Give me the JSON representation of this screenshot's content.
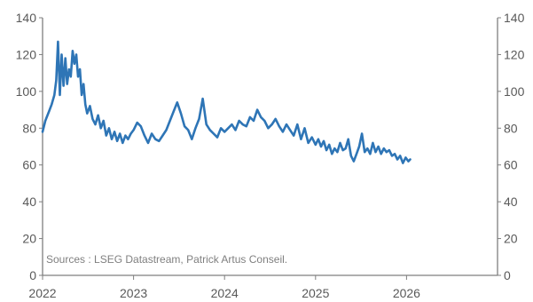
{
  "chart_data": {
    "type": "line",
    "title": "",
    "xlabel": "",
    "ylabel": "",
    "ylim": [
      0,
      140
    ],
    "yticks": [
      0,
      20,
      40,
      60,
      80,
      100,
      120,
      140
    ],
    "xlim": [
      2022,
      2027
    ],
    "xticks": [
      2022,
      2023,
      2024,
      2025,
      2026
    ],
    "xtick_labels": [
      "2022",
      "2023",
      "2024",
      "2025",
      "2026"
    ],
    "secondary_y_axis": true,
    "grid": false,
    "legend": "none",
    "annotation": "Sources : LSEG Datastream, Patrick Artus Conseil.",
    "series": [
      {
        "color": "#2e75b6",
        "x": [
          2022.0,
          2022.03,
          2022.07,
          2022.1,
          2022.13,
          2022.15,
          2022.17,
          2022.19,
          2022.21,
          2022.23,
          2022.25,
          2022.27,
          2022.29,
          2022.31,
          2022.33,
          2022.35,
          2022.37,
          2022.39,
          2022.41,
          2022.43,
          2022.45,
          2022.47,
          2022.49,
          2022.52,
          2022.55,
          2022.58,
          2022.61,
          2022.64,
          2022.67,
          2022.7,
          2022.73,
          2022.76,
          2022.79,
          2022.82,
          2022.85,
          2022.88,
          2022.91,
          2022.94,
          2022.97,
          2023.0,
          2023.04,
          2023.08,
          2023.12,
          2023.16,
          2023.2,
          2023.24,
          2023.28,
          2023.32,
          2023.36,
          2023.4,
          2023.44,
          2023.48,
          2023.52,
          2023.56,
          2023.6,
          2023.64,
          2023.68,
          2023.72,
          2023.76,
          2023.8,
          2023.84,
          2023.88,
          2023.92,
          2023.96,
          2024.0,
          2024.04,
          2024.08,
          2024.12,
          2024.16,
          2024.2,
          2024.24,
          2024.28,
          2024.32,
          2024.36,
          2024.4,
          2024.44,
          2024.48,
          2024.52,
          2024.56,
          2024.6,
          2024.64,
          2024.68,
          2024.72,
          2024.76,
          2024.8,
          2024.84,
          2024.88,
          2024.92,
          2024.96,
          2025.0,
          2025.03,
          2025.06,
          2025.09,
          2025.12,
          2025.15,
          2025.18,
          2025.21,
          2025.24,
          2025.27,
          2025.3,
          2025.33,
          2025.36,
          2025.39,
          2025.42,
          2025.45,
          2025.48,
          2025.51,
          2025.54,
          2025.57,
          2025.6,
          2025.63,
          2025.66,
          2025.69,
          2025.72,
          2025.75,
          2025.78,
          2025.81,
          2025.84,
          2025.87,
          2025.9,
          2025.93,
          2025.96,
          2025.99,
          2026.02,
          2026.04
        ],
        "values": [
          78,
          84,
          89,
          93,
          98,
          106,
          127,
          98,
          120,
          103,
          118,
          104,
          112,
          108,
          122,
          115,
          120,
          108,
          112,
          98,
          104,
          93,
          88,
          92,
          85,
          82,
          87,
          80,
          84,
          76,
          80,
          74,
          78,
          73,
          77,
          72,
          76,
          74,
          77,
          79,
          83,
          81,
          76,
          72,
          77,
          74,
          73,
          76,
          79,
          84,
          89,
          94,
          88,
          81,
          79,
          74,
          80,
          85,
          96,
          82,
          79,
          77,
          75,
          80,
          78,
          80,
          82,
          79,
          84,
          82,
          81,
          86,
          84,
          90,
          86,
          84,
          80,
          82,
          85,
          81,
          78,
          82,
          79,
          76,
          82,
          74,
          80,
          72,
          75,
          71,
          74,
          70,
          73,
          68,
          71,
          66,
          69,
          67,
          72,
          68,
          69,
          74,
          65,
          62,
          66,
          70,
          77,
          67,
          69,
          66,
          72,
          67,
          70,
          66,
          69,
          67,
          68,
          65,
          66,
          63,
          65,
          61,
          64,
          62,
          63
        ]
      }
    ]
  }
}
